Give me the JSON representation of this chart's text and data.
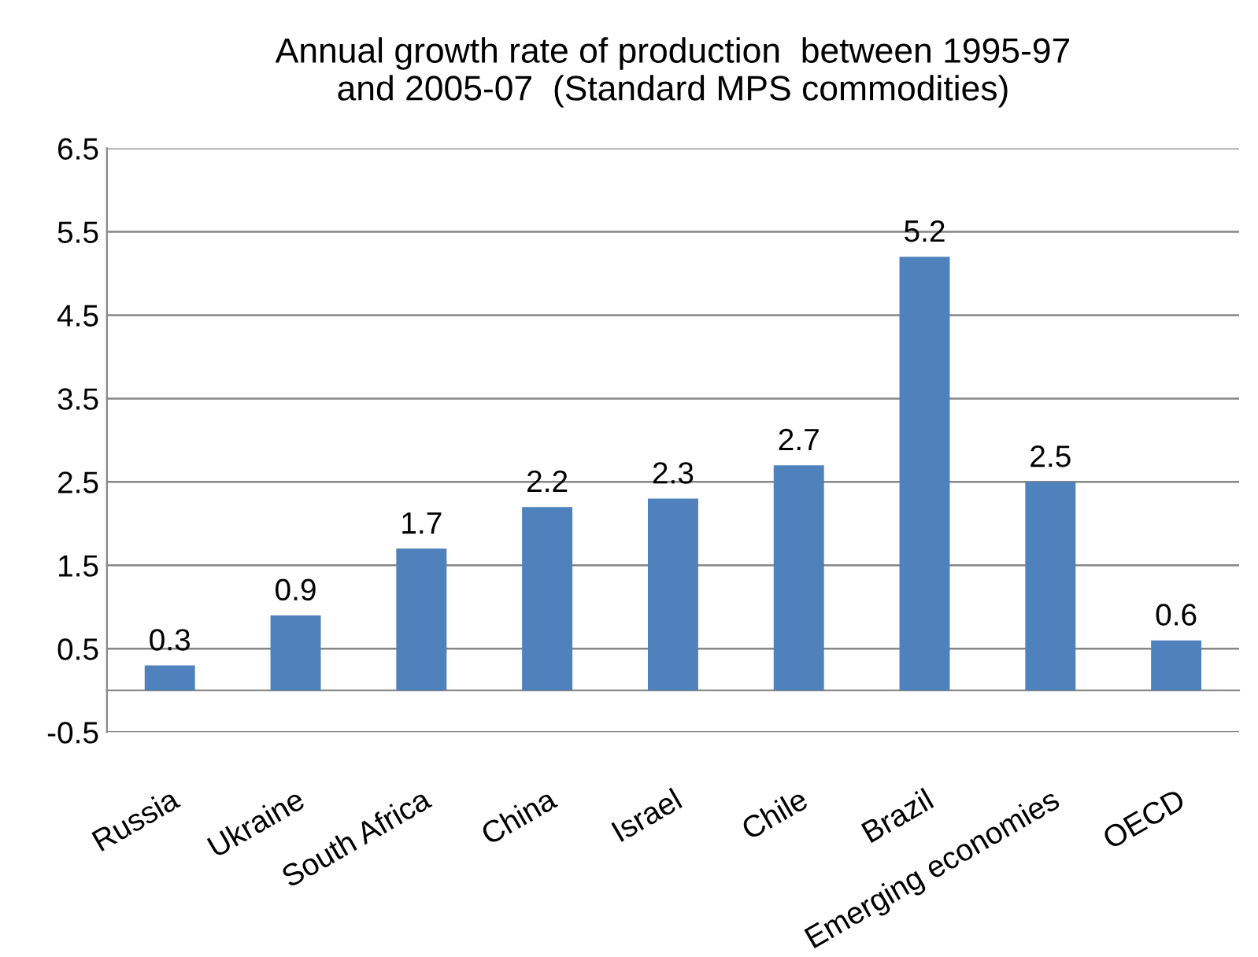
{
  "chart_data": {
    "type": "bar",
    "title": "Annual growth rate of production  between 1995-97\nand 2005-07  (Standard MPS commodities)",
    "categories": [
      "Russia",
      "Ukraine",
      "South Africa",
      "China",
      "Israel",
      "Chile",
      "Brazil",
      "Emerging economies",
      "OECD"
    ],
    "values": [
      0.3,
      0.9,
      1.7,
      2.2,
      2.3,
      2.7,
      5.2,
      2.5,
      0.6
    ],
    "color": "#4f81bd",
    "ylim": [
      -0.5,
      6.5
    ],
    "yticks": [
      -0.5,
      0.5,
      1.5,
      2.5,
      3.5,
      4.5,
      5.5,
      6.5
    ],
    "grid": "y",
    "data_labels": true
  }
}
